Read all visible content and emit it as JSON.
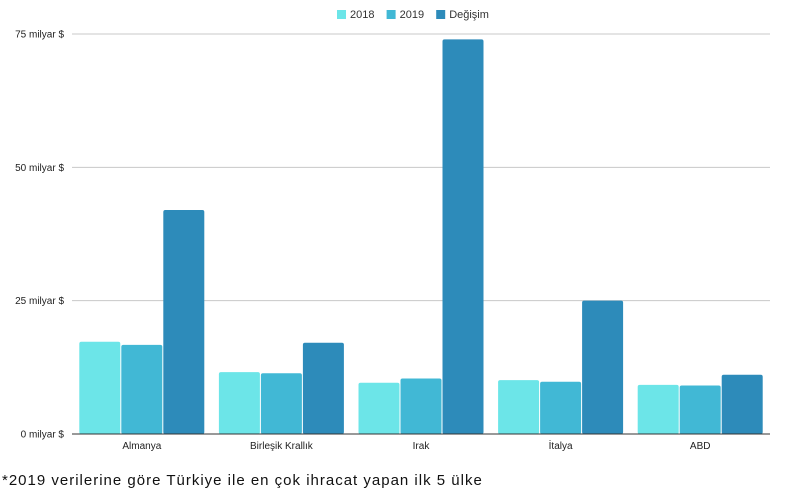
{
  "chart_data": {
    "type": "bar",
    "categories": [
      "Almanya",
      "Birleşik Krallık",
      "Irak",
      "İtalya",
      "ABD"
    ],
    "series": [
      {
        "name": "2018",
        "color": "#6ce5e8",
        "values": [
          17.3,
          11.6,
          9.6,
          10.1,
          9.2
        ]
      },
      {
        "name": "2019",
        "color": "#41b8d5",
        "values": [
          16.7,
          11.4,
          10.4,
          9.8,
          9.1
        ]
      },
      {
        "name": "Değişim",
        "color": "#2d8bba",
        "values": [
          42.0,
          17.1,
          74.0,
          25.0,
          11.1
        ]
      }
    ],
    "ylim": [
      0,
      75
    ],
    "yticks": [
      {
        "value": 0,
        "label": "0 milyar $"
      },
      {
        "value": 25,
        "label": "25 milyar $"
      },
      {
        "value": 50,
        "label": "50 milyar $"
      },
      {
        "value": 75,
        "label": "75 milyar $"
      }
    ],
    "grid": true,
    "legend_position": "top-center"
  },
  "footnote": "*2019 verilerine göre Türkiye ile en çok ihracat yapan ilk 5 ülke"
}
